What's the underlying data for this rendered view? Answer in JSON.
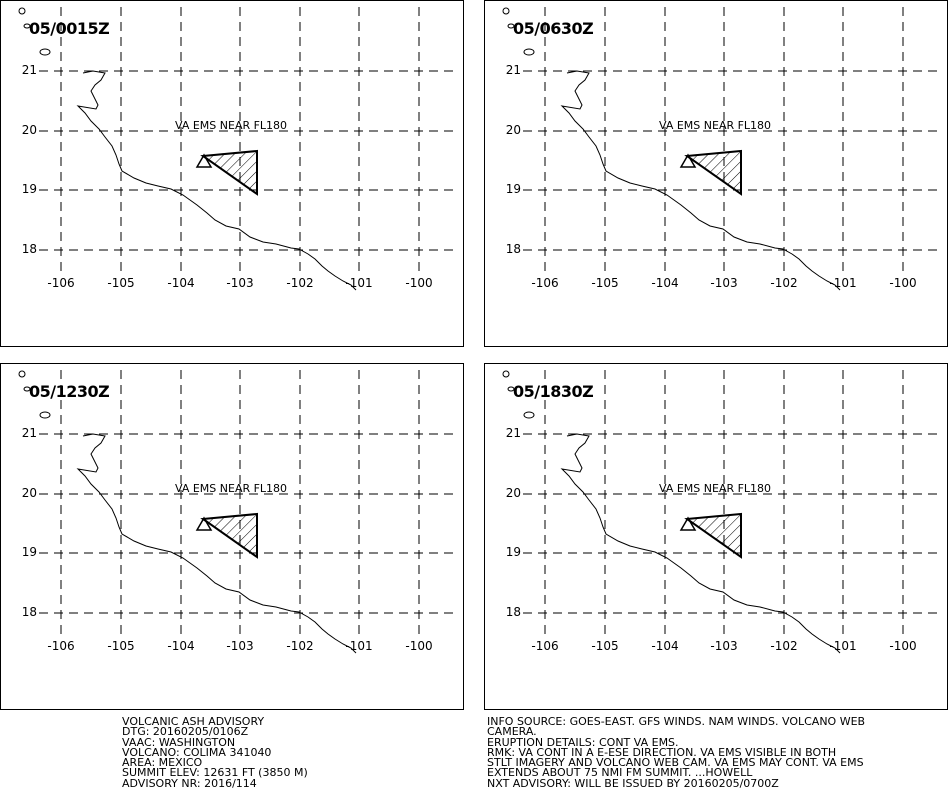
{
  "panels": [
    {
      "time": "05/0015Z",
      "ash_label": "VA EMS NEAR FL180"
    },
    {
      "time": "05/0630Z",
      "ash_label": "VA EMS NEAR FL180"
    },
    {
      "time": "05/1230Z",
      "ash_label": "VA EMS NEAR FL180"
    },
    {
      "time": "05/1830Z",
      "ash_label": "VA EMS NEAR FL180"
    }
  ],
  "lat_labels": [
    "21",
    "20",
    "19",
    "18"
  ],
  "lon_labels": [
    "-106",
    "-105",
    "-104",
    "-103",
    "-102",
    "-101",
    "-100"
  ],
  "advisory_left": [
    "VOLCANIC ASH ADVISORY",
    "DTG: 20160205/0106Z",
    "VAAC: WASHINGTON",
    "VOLCANO: COLIMA 341040",
    "AREA: MEXICO",
    "SUMMIT ELEV: 12631 FT (3850 M)",
    "ADVISORY NR: 2016/114"
  ],
  "advisory_right": [
    "INFO SOURCE: GOES-EAST. GFS WINDS. NAM WINDS. VOLCANO WEB",
    "CAMERA.",
    "ERUPTION DETAILS: CONT VA EMS.",
    "RMK: VA CONT IN A E-ESE DIRECTION. VA EMS VISIBLE IN BOTH",
    "STLT IMAGERY AND VOLCANO WEB CAM. VA EMS MAY CONT. VA EMS",
    "EXTENDS ABOUT 75 NMI FM SUMMIT. ...HOWELL",
    "NXT ADVISORY: WILL BE ISSUED BY 20160205/0700Z"
  ],
  "colors": {
    "line": "#000000",
    "background": "#ffffff"
  }
}
